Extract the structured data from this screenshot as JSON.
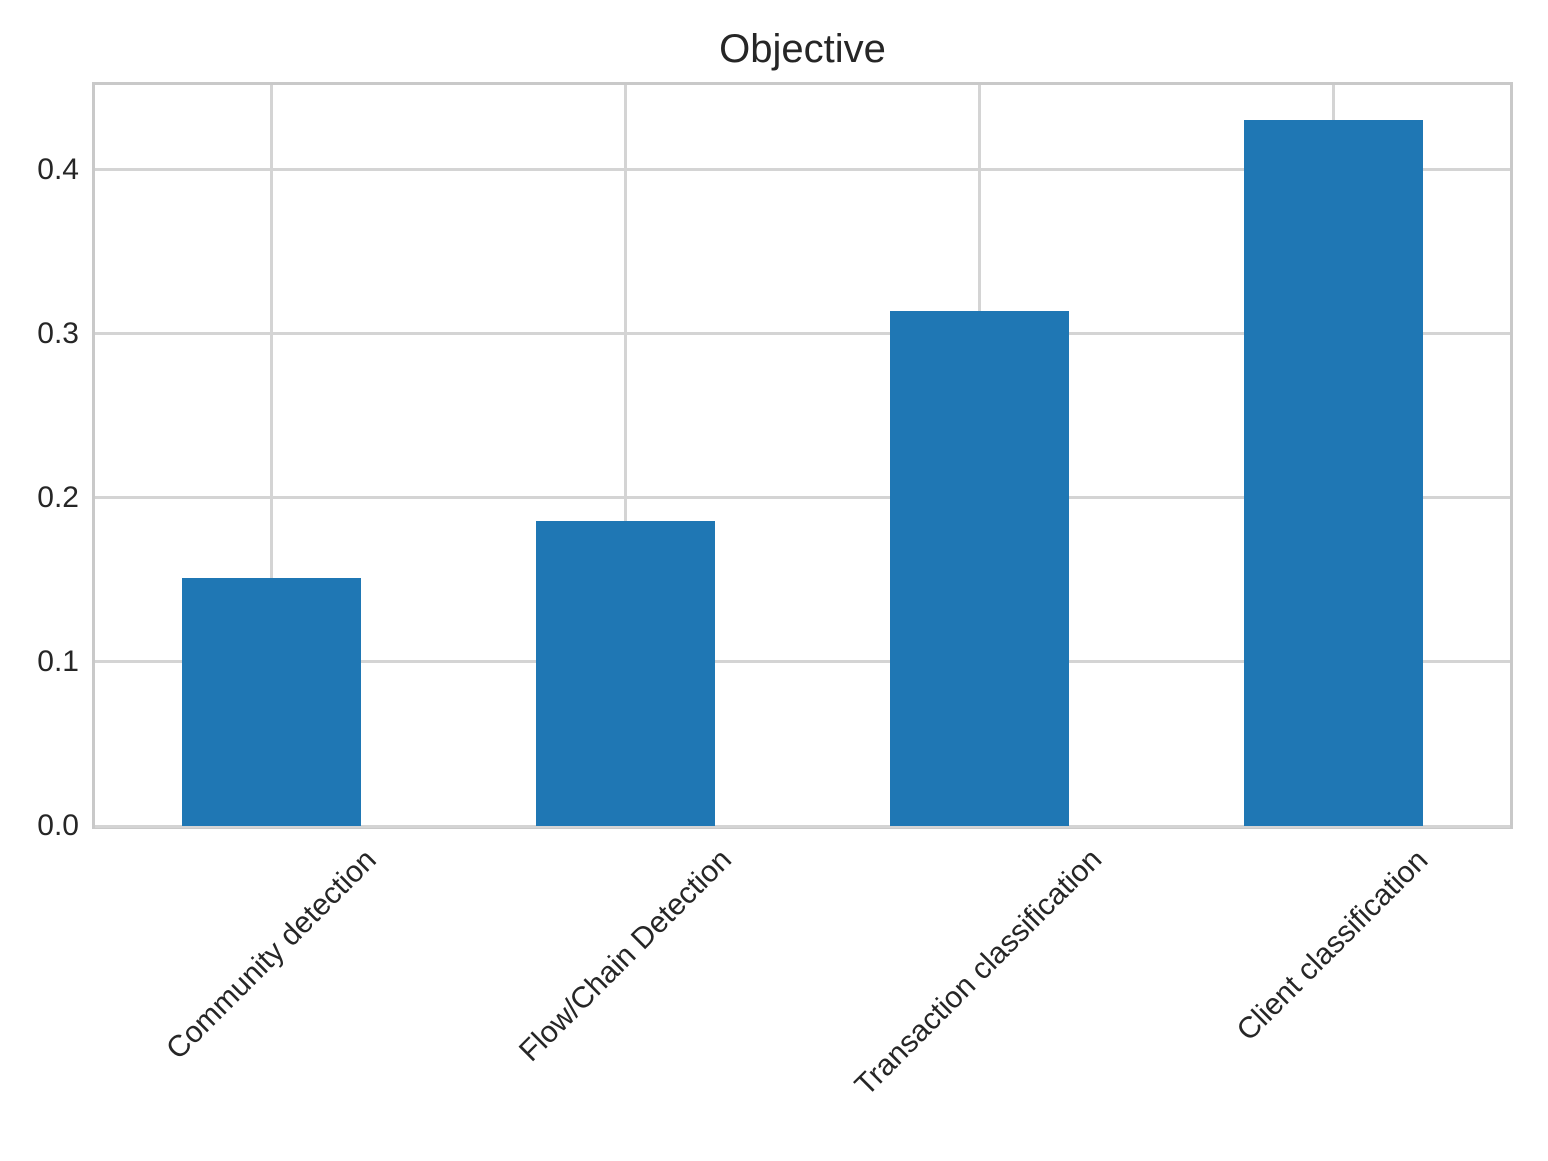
{
  "chart_data": {
    "type": "bar",
    "title": "Objective",
    "categories": [
      "Community detection",
      "Flow/Chain Detection",
      "Transaction classification",
      "Client classification"
    ],
    "values": [
      0.151,
      0.186,
      0.314,
      0.43
    ],
    "xlabel": "",
    "ylabel": "",
    "ylim": [
      0,
      0.4515
    ],
    "yticks": [
      0.0,
      0.1,
      0.2,
      0.3,
      0.4
    ],
    "ytick_labels": [
      "0.0",
      "0.1",
      "0.2",
      "0.3",
      "0.4"
    ],
    "grid": true,
    "legend": null,
    "bar_color": "#1f77b4",
    "grid_color": "#d4d4d4",
    "spine_color": "#c9c9c9",
    "text_color": "#262626",
    "background": "#ffffff"
  }
}
